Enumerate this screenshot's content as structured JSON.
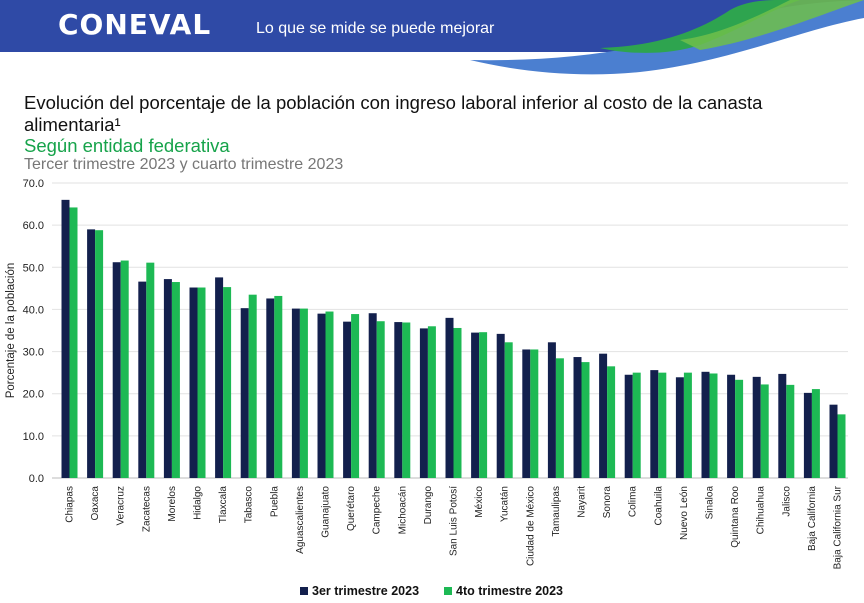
{
  "header": {
    "logo": "CONEVAL",
    "tagline": "Lo que se mide se puede mejorar"
  },
  "title": "Evolución del porcentaje de la población con ingreso laboral inferior al costo de la canasta alimentaria¹",
  "subtitle": "Según entidad federativa",
  "period": "Tercer trimestre 2023 y cuarto trimestre 2023",
  "colors": {
    "series1": "#13204d",
    "series2": "#1db954",
    "banner": "#2f4aa6",
    "accent": "#16a34a"
  },
  "chart_data": {
    "type": "bar",
    "ylabel": "Porcentaje de la población",
    "xlabel": "",
    "ylim": [
      0,
      70
    ],
    "yticks": [
      "0.0",
      "10.0",
      "20.0",
      "30.0",
      "40.0",
      "50.0",
      "60.0",
      "70.0"
    ],
    "grid": true,
    "legend_position": "bottom",
    "categories": [
      "Chiapas",
      "Oaxaca",
      "Veracruz",
      "Zacatecas",
      "Morelos",
      "Hidalgo",
      "Tlaxcala",
      "Tabasco",
      "Puebla",
      "Aguascalientes",
      "Guanajuato",
      "Querétaro",
      "Campeche",
      "Michoacán",
      "Durango",
      "San Luis Potosí",
      "México",
      "Yucatán",
      "Ciudad de México",
      "Tamaulipas",
      "Nayarit",
      "Sonora",
      "Colima",
      "Coahuila",
      "Nuevo León",
      "Sinaloa",
      "Quintana Roo",
      "Chihuahua",
      "Jalisco",
      "Baja California",
      "Baja California Sur"
    ],
    "series": [
      {
        "name": "3er trimestre 2023",
        "values": [
          66.0,
          59.0,
          51.2,
          46.6,
          47.2,
          45.2,
          47.6,
          40.3,
          42.6,
          40.2,
          39.0,
          37.1,
          39.1,
          37.0,
          35.5,
          38.0,
          34.5,
          34.2,
          30.5,
          32.2,
          28.7,
          29.5,
          24.5,
          25.6,
          23.9,
          25.2,
          24.5,
          24.0,
          24.7,
          20.2,
          17.4
        ]
      },
      {
        "name": "4to trimestre 2023",
        "values": [
          64.2,
          58.8,
          51.6,
          51.1,
          46.5,
          45.2,
          45.3,
          43.5,
          43.2,
          40.2,
          39.5,
          38.9,
          37.2,
          36.9,
          36.0,
          35.6,
          34.6,
          32.2,
          30.5,
          28.4,
          27.5,
          26.5,
          25.0,
          25.0,
          25.0,
          24.8,
          23.3,
          22.2,
          22.1,
          21.1,
          15.1
        ]
      }
    ]
  }
}
